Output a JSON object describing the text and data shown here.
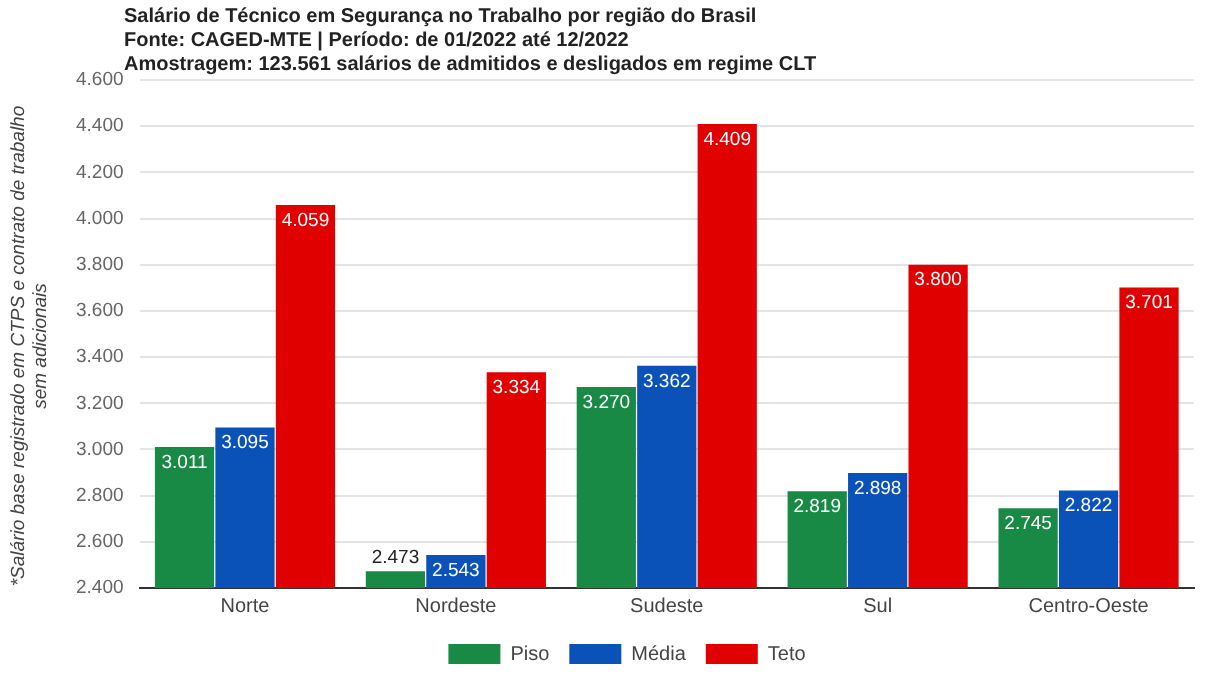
{
  "chart_data": {
    "type": "bar",
    "title": "Salário de Técnico em Segurança no Trabalho por região do Brasil",
    "subtitle": "Fonte: CAGED-MTE | Período: de 01/2022 até 12/2022",
    "annotations": [
      "Amostragem: 123.561 salários de admitidos e desligados em regime CLT"
    ],
    "ylabel": "*Salário base registrado em CTPS e contrato de trabalho sem adicionais",
    "categories": [
      "Norte",
      "Nordeste",
      "Sudeste",
      "Sul",
      "Centro-Oeste"
    ],
    "series": [
      {
        "name": "Piso",
        "color": "#188a46",
        "values": [
          3011,
          2473,
          3270,
          2819,
          2745
        ],
        "value_labels": [
          "3.011",
          "2.473",
          "3.270",
          "2.819",
          "2.745"
        ]
      },
      {
        "name": "Média",
        "color": "#0b52b8",
        "values": [
          3095,
          2543,
          3362,
          2898,
          2822
        ],
        "value_labels": [
          "3.095",
          "2.543",
          "3.362",
          "2.898",
          "2.822"
        ]
      },
      {
        "name": "Teto",
        "color": "#e00000",
        "values": [
          4059,
          3334,
          4409,
          3800,
          3701
        ],
        "value_labels": [
          "4.059",
          "3.334",
          "4.409",
          "3.800",
          "3.701"
        ]
      }
    ],
    "ylim": [
      2400,
      4600
    ],
    "yticks": [
      {
        "value": 2400,
        "label": "2.400"
      },
      {
        "value": 2600,
        "label": "2.600"
      },
      {
        "value": 2800,
        "label": "2.800"
      },
      {
        "value": 3000,
        "label": "3.000"
      },
      {
        "value": 3200,
        "label": "3.200"
      },
      {
        "value": 3400,
        "label": "3.400"
      },
      {
        "value": 3600,
        "label": "3.600"
      },
      {
        "value": 3800,
        "label": "3.800"
      },
      {
        "value": 4000,
        "label": "4.000"
      },
      {
        "value": 4200,
        "label": "4.200"
      },
      {
        "value": 4400,
        "label": "4.400"
      },
      {
        "value": 4600,
        "label": "4.600"
      }
    ],
    "grid": "y",
    "legend": "bottom"
  }
}
